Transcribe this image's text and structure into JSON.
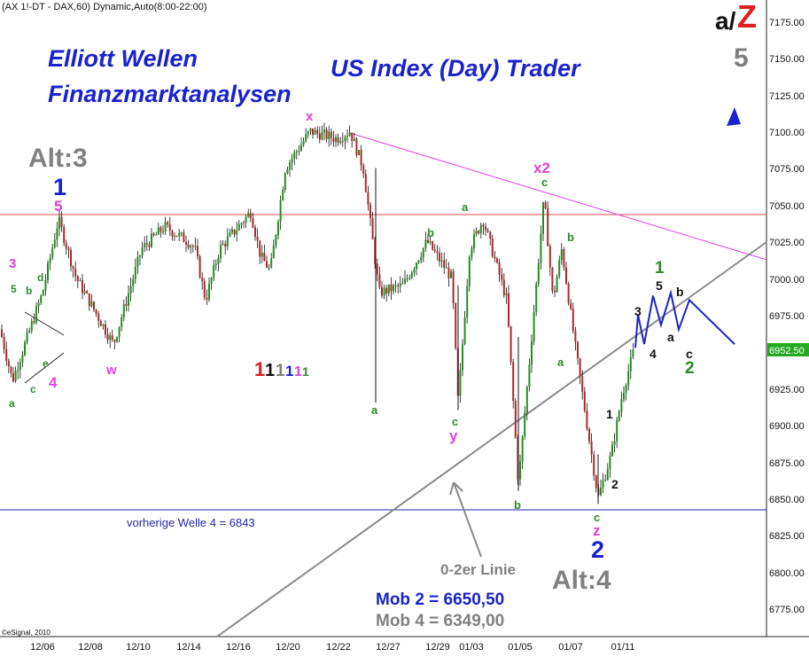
{
  "header": {
    "symbol_line": "(AX 1!-DT - DAX,60) Dynamic,Auto(8:00-22:00)"
  },
  "branding": {
    "title_line1": "Elliott Wellen",
    "title_line2": "Finanzmarktanalysen",
    "subtitle": "US Index (Day) Trader",
    "az_a": "a/",
    "az_z": "Z",
    "copyright": "©eSignal, 2010"
  },
  "colors": {
    "candle_up": "#1f8f1f",
    "candle_down": "#b0262a",
    "wick": "#111111",
    "resistance": "#e04848",
    "support": "#2424b4",
    "downtrend": "#e040e0",
    "channel": "#8a8a8a",
    "projection": "#1a22cc",
    "price_tag": "#22aa22"
  },
  "chart_data": {
    "type": "candlestick",
    "title": "",
    "xlabel": "",
    "ylabel": "",
    "ylim": [
      6760,
      7185
    ],
    "x_ticks": [
      "12/06",
      "12/08",
      "12/10",
      "12/14",
      "12/16",
      "12/20",
      "12/22",
      "12/27",
      "12/29",
      "01/03",
      "01/05",
      "01/07",
      "01/11"
    ],
    "y_ticks": [
      "7175.00",
      "7150.00",
      "7125.00",
      "7100.00",
      "7075.00",
      "7050.00",
      "7025.00",
      "7000.00",
      "6975.00",
      "6950.00",
      "6925.00",
      "6900.00",
      "6875.00",
      "6850.00",
      "6825.00",
      "6800.00",
      "6775.00"
    ],
    "current_price": "6952.50",
    "path_points": [
      {
        "label": "12/02",
        "price": 6965
      },
      {
        "label": "12/03",
        "price": 6930
      },
      {
        "label": "12/06",
        "price": 6990
      },
      {
        "label": "12/06",
        "price": 7040
      },
      {
        "label": "12/07",
        "price": 7000
      },
      {
        "label": "12/08",
        "price": 6955
      },
      {
        "label": "12/09",
        "price": 7020
      },
      {
        "label": "12/10",
        "price": 7035
      },
      {
        "label": "12/13",
        "price": 7025
      },
      {
        "label": "12/14",
        "price": 7020
      },
      {
        "label": "12/14",
        "price": 6985
      },
      {
        "label": "12/15",
        "price": 7020
      },
      {
        "label": "12/16",
        "price": 7045
      },
      {
        "label": "12/16",
        "price": 7015
      },
      {
        "label": "12/17",
        "price": 7005
      },
      {
        "label": "12/20",
        "price": 7075
      },
      {
        "label": "12/20",
        "price": 7100
      },
      {
        "label": "12/21",
        "price": 7095
      },
      {
        "label": "12/22",
        "price": 7100
      },
      {
        "label": "12/23",
        "price": 7075
      },
      {
        "label": "12/27",
        "price": 6990
      },
      {
        "label": "12/28",
        "price": 6995
      },
      {
        "label": "12/29",
        "price": 7025
      },
      {
        "label": "12/30",
        "price": 7000
      },
      {
        "label": "12/30",
        "price": 6915
      },
      {
        "label": "12/31",
        "price": 7020
      },
      {
        "label": "01/03",
        "price": 7040
      },
      {
        "label": "01/04",
        "price": 6985
      },
      {
        "label": "01/04",
        "price": 6860
      },
      {
        "label": "01/05",
        "price": 6960
      },
      {
        "label": "01/06",
        "price": 7055
      },
      {
        "label": "01/06",
        "price": 6985
      },
      {
        "label": "01/07",
        "price": 7020
      },
      {
        "label": "01/07",
        "price": 6950
      },
      {
        "label": "01/10",
        "price": 6850
      },
      {
        "label": "01/10",
        "price": 6880
      },
      {
        "label": "01/11",
        "price": 6920
      },
      {
        "label": "01/11",
        "price": 6952.5
      }
    ],
    "projection_points": [
      {
        "label": "1",
        "price": 6975
      },
      {
        "label": "2",
        "price": 6955
      },
      {
        "label": "3",
        "price": 6988
      },
      {
        "label": "4",
        "price": 6968
      },
      {
        "label": "5",
        "price": 6990
      },
      {
        "label": "a",
        "price": 6965
      },
      {
        "label": "b",
        "price": 6985
      },
      {
        "label": "c",
        "price": 6955
      },
      {
        "label": "target",
        "price": 7115
      }
    ],
    "horizontal_lines": [
      {
        "name": "resistance",
        "price": 7045
      },
      {
        "name": "vorherige Welle 4",
        "price": 6843
      }
    ]
  },
  "annotations": {
    "alt3": "Alt:3",
    "alt4": "Alt:4",
    "prev_wave4": "vorherige Welle 4 = 6843",
    "line_02": "0-2er Linie",
    "mob2": "Mob 2 = 6650,50",
    "mob4": "Mob 4 = 6349,00",
    "w5": "5",
    "w1_blue": "1",
    "w5_magenta": "5",
    "w3_magenta": "3",
    "x_mag": "x",
    "x2_mag": "x2",
    "w_mag": "w",
    "y_mag": "y",
    "z_mag": "z",
    "w4_mag": "4",
    "w2_blue": "2",
    "ones_1": "1",
    "ones_2": "1",
    "ones_3": "1",
    "ones_4": "1",
    "ones_5": "1",
    "ones_6": "1",
    "g5": "5",
    "gb1": "b",
    "gd": "d",
    "ga1": "a",
    "gc1": "c",
    "ge": "e",
    "ga2": "a",
    "gb2": "b",
    "gc2": "c",
    "ga3": "a",
    "gc3": "c",
    "gb3": "b",
    "ga4": "a",
    "gb4": "b",
    "gc4": "c",
    "k1": "1",
    "k2": "2",
    "k3": "3",
    "k4": "4",
    "k5": "5",
    "ka": "a",
    "kb": "b",
    "kc": "c",
    "g1big": "1",
    "g2big": "2"
  }
}
